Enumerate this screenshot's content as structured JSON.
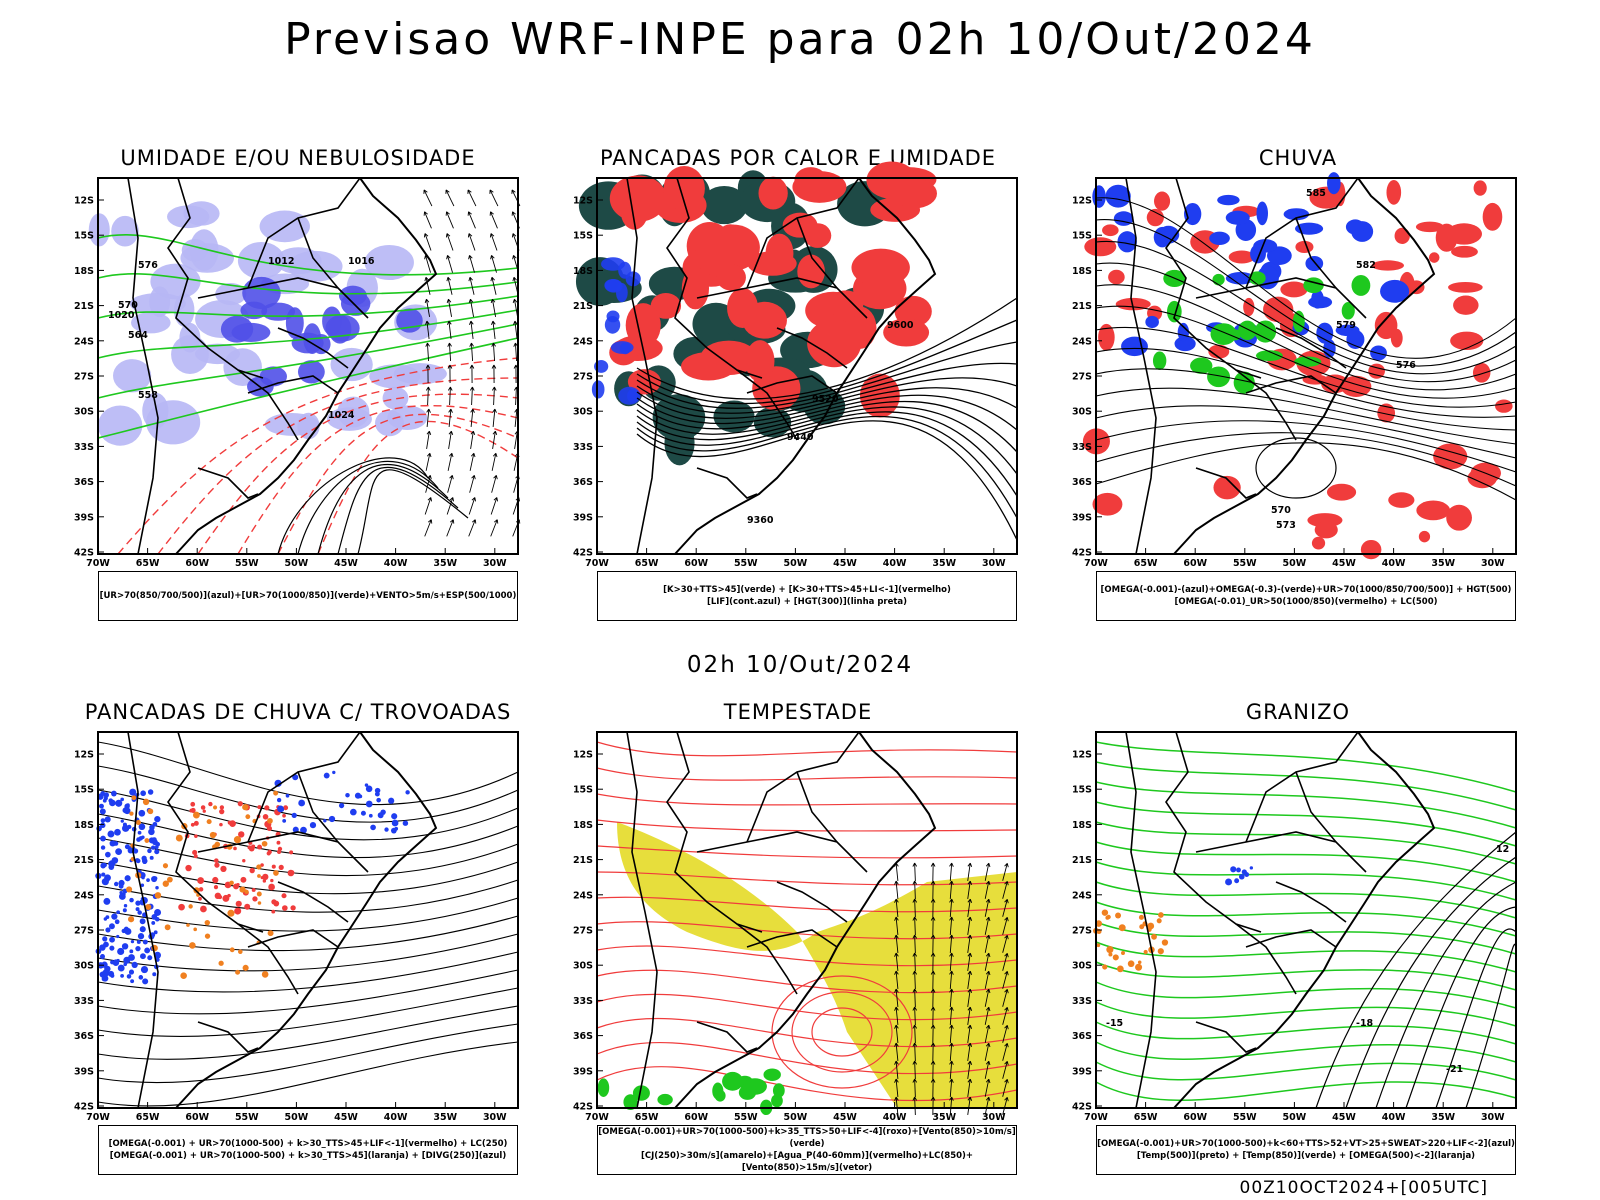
{
  "main_title": "Previsao WRF-INPE  para 02h 10/Out/2024",
  "sub_title": "02h 10/Out/2024",
  "footer": "00Z10OCT2024+[005UTC]",
  "axes": {
    "lat_ticks": [
      "12S",
      "15S",
      "18S",
      "21S",
      "24S",
      "27S",
      "30S",
      "33S",
      "36S",
      "39S",
      "42S"
    ],
    "lon_ticks": [
      "70W",
      "65W",
      "60W",
      "55W",
      "50W",
      "45W",
      "40W",
      "35W",
      "30W"
    ]
  },
  "panels": [
    {
      "title": "UMIDADE E/OU NEBULOSIDADE",
      "caption": [
        "[UR>70(850/700/500)](azul)+[UR>70(1000/850)](verde)+VENTO>5m/s+ESP(500/1000)"
      ],
      "labels": [
        "1012",
        "1016",
        "1020",
        "1024",
        "576",
        "570",
        "564",
        "558"
      ]
    },
    {
      "title": "PANCADAS POR CALOR E UMIDADE",
      "caption": [
        "[K>30+TTS>45](verde) + [K>30+TTS>45+LI<-1](vermelho)",
        "[LIF](cont.azul) + [HGT(300)](linha preta)"
      ],
      "labels": [
        "9600",
        "9520",
        "9440",
        "9360"
      ]
    },
    {
      "title": "CHUVA",
      "caption": [
        "[OMEGA(-0.001)-(azul)+OMEGA(-0.3)-(verde)+UR>70(1000/850/700/500)] + HGT(500)",
        "[OMEGA(-0.01)_UR>50(1000/850)(vermelho) + LC(500)"
      ],
      "labels": [
        "585",
        "582",
        "579",
        "576",
        "573",
        "570"
      ]
    },
    {
      "title": "PANCADAS DE CHUVA C/ TROVOADAS",
      "caption": [
        "[OMEGA(-0.001) + UR>70(1000-500) + k>30_TTS>45+LIF<-1](vermelho) + LC(250)",
        "[OMEGA(-0.001) + UR>70(1000-500) + k>30_TTS>45](laranja) + [DIVG(250)](azul)"
      ],
      "labels": []
    },
    {
      "title": "TEMPESTADE",
      "caption": [
        "[OMEGA(-0.001)+UR>70(1000-500)+k>35_TTS>50+LIF<-4](roxo)+[Vento(850)>10m/s](verde)",
        "[CJ(250)>30m/s](amarelo)+[Agua_P(40-60mm)](vermelho)+LC(850)+[Vento(850)>15m/s](vetor)"
      ],
      "labels": []
    },
    {
      "title": "GRANIZO",
      "caption": [
        "[OMEGA(-0.001)+UR>70(1000-500)+k<60+TTS>52+VT>25+SWEAT>220+LIF<-2](azul)",
        "[Temp(500)](preto) + [Temp(850)](verde) + [OMEGA(500)<-2](laranja)"
      ],
      "labels": [
        "-15",
        "-18",
        "-21",
        "12"
      ]
    }
  ],
  "colors": {
    "humid_light": "#b7b7f5",
    "humid_dark": "#5050e8",
    "green": "#1ec81e",
    "red": "#f03c3c",
    "dark_teal": "#1e4a46",
    "blue": "#1f3df0",
    "orange": "#f08020",
    "yellow": "#e6dc32"
  }
}
